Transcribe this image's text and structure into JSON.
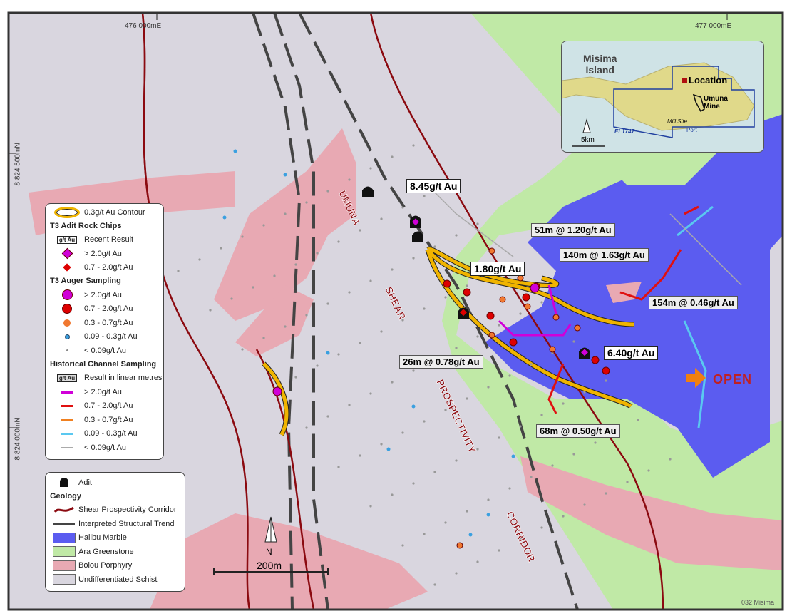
{
  "grid": {
    "e1": "476 000mE",
    "e2": "477 000mE",
    "n1": "8 824 500mN",
    "n2": "8 824 000mN"
  },
  "colors": {
    "schist": "#d9d6df",
    "greenstone": "#c0e9a6",
    "marble": "#5b5cf0",
    "porphyry": "#e8a9b3",
    "shear": "#8b0a10",
    "contour": "#f0b400"
  },
  "corridor_labels": [
    "UMUNA",
    "SHEAR",
    "PROSPECTIVITY",
    "CORRIDOR"
  ],
  "open_label": "OPEN",
  "results": {
    "adit": [
      "8.45g/t Au",
      "1.80g/t Au",
      "6.40g/t Au"
    ],
    "channel": [
      "51m @ 1.20g/t Au",
      "140m @ 1.63g/t Au",
      "154m @ 0.46g/t Au",
      "26m @ 0.78g/t Au",
      "68m @ 0.50g/t Au"
    ]
  },
  "scale": {
    "label": "200m"
  },
  "inset": {
    "title_line1": "Misima",
    "title_line2": "Island",
    "location": "Location",
    "mine_line1": "Umuna",
    "mine_line2": "Mine",
    "mill": "Mill Site",
    "port": "Port",
    "tenement": "EL1747",
    "scale": "5km"
  },
  "legend": {
    "contour": "0.3g/t Au Contour",
    "rock_chips": {
      "heading": "T3 Adit Rock Chips",
      "box": "g/t Au",
      "recent": "Recent Result",
      "items": [
        "> 2.0g/t Au",
        "0.7 - 2.0g/t Au"
      ]
    },
    "auger": {
      "heading": "T3 Auger Sampling",
      "items": [
        "> 2.0g/t Au",
        "0.7 - 2.0g/t Au",
        "0.3 - 0.7g/t Au",
        "0.09 - 0.3g/t Au",
        "< 0.09g/t Au"
      ]
    },
    "channel": {
      "heading": "Historical Channel Sampling",
      "box": "g/t Au",
      "result": "Result in linear metres",
      "items": [
        "> 2.0g/t Au",
        "0.7 - 2.0g/t Au",
        "0.3 - 0.7g/t Au",
        "0.09 - 0.3g/t Au",
        "< 0.09g/t Au"
      ]
    },
    "adit": "Adit",
    "geology": {
      "heading": "Geology",
      "items": [
        "Shear Prospectivity Corridor",
        "Interpreted Structural Trend",
        "Halibu Marble",
        "Ara Greenstone",
        "Boiou Porphyry",
        "Undifferentiated Schist"
      ]
    }
  },
  "footer": "032 Misima"
}
